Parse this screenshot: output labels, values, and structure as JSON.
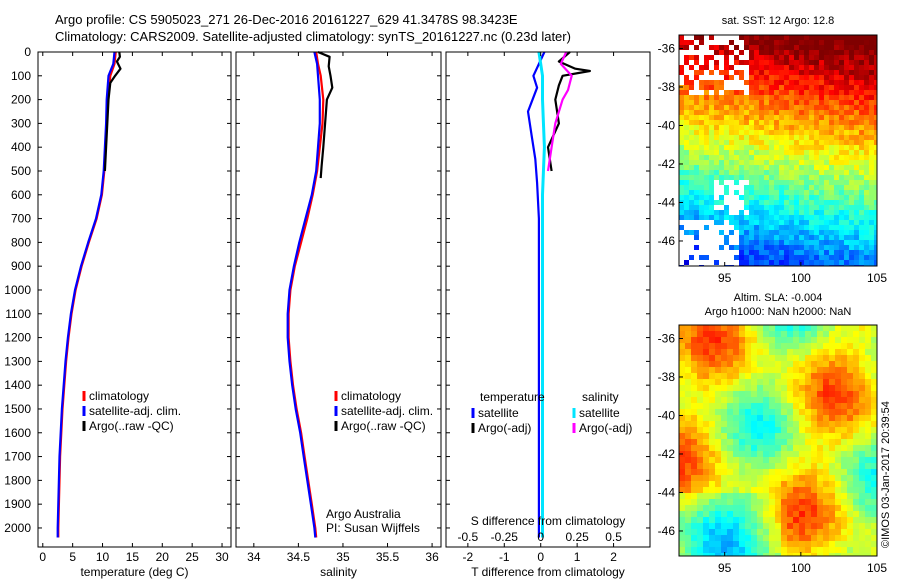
{
  "header": {
    "line1": "Argo profile: CS 5905023_271 26-Dec-2016 20161227_629 41.3478S 98.3423E",
    "line2": "Climatology: CARS2009. Satellite-adjusted climatology: synTS_20161227.nc (0.23d later)"
  },
  "side_text": "©IMOS 03-Jan-2017 20:39:54",
  "colors": {
    "climatology": "#ff0000",
    "satellite_adj": "#0000ff",
    "argo": "#000000",
    "salinity_satellite": "#00e5ff",
    "salinity_argo": "#ff00ff"
  },
  "chart_data": [
    {
      "type": "line",
      "id": "temperature",
      "xlabel": "temperature (deg C)",
      "xlim": [
        -0.8,
        31.5
      ],
      "xticks": [
        0,
        5,
        10,
        15,
        20,
        25,
        30
      ],
      "ylim": [
        2080,
        0
      ],
      "yticks": [
        0,
        100,
        200,
        300,
        400,
        500,
        600,
        700,
        800,
        900,
        1000,
        1100,
        1200,
        1300,
        1400,
        1500,
        1600,
        1700,
        1800,
        1900,
        2000
      ],
      "legend": [
        "climatology",
        "satellite-adj. clim.",
        "Argo(..raw -QC)"
      ],
      "series": [
        {
          "name": "climatology",
          "color": "#ff0000",
          "points": [
            [
              12.2,
              0
            ],
            [
              12.0,
              50
            ],
            [
              11.3,
              100
            ],
            [
              10.9,
              200
            ],
            [
              10.7,
              300
            ],
            [
              10.5,
              400
            ],
            [
              10.3,
              500
            ],
            [
              9.9,
              600
            ],
            [
              9.0,
              700
            ],
            [
              7.7,
              800
            ],
            [
              6.5,
              900
            ],
            [
              5.5,
              1000
            ],
            [
              4.8,
              1100
            ],
            [
              4.3,
              1200
            ],
            [
              3.9,
              1300
            ],
            [
              3.6,
              1400
            ],
            [
              3.3,
              1500
            ],
            [
              3.1,
              1600
            ],
            [
              2.9,
              1700
            ],
            [
              2.8,
              1800
            ],
            [
              2.7,
              1900
            ],
            [
              2.6,
              2000
            ],
            [
              2.6,
              2040
            ]
          ]
        },
        {
          "name": "satellite-adj. clim.",
          "color": "#0000ff",
          "points": [
            [
              12.0,
              0
            ],
            [
              11.8,
              50
            ],
            [
              11.0,
              100
            ],
            [
              10.7,
              200
            ],
            [
              10.6,
              300
            ],
            [
              10.4,
              400
            ],
            [
              10.2,
              500
            ],
            [
              9.8,
              600
            ],
            [
              8.9,
              700
            ],
            [
              7.6,
              800
            ],
            [
              6.4,
              900
            ],
            [
              5.4,
              1000
            ],
            [
              4.7,
              1100
            ],
            [
              4.2,
              1200
            ],
            [
              3.8,
              1300
            ],
            [
              3.5,
              1400
            ],
            [
              3.2,
              1500
            ],
            [
              3.0,
              1600
            ],
            [
              2.8,
              1700
            ],
            [
              2.7,
              1800
            ],
            [
              2.6,
              1900
            ],
            [
              2.5,
              2000
            ],
            [
              2.5,
              2040
            ]
          ]
        },
        {
          "name": "Argo(..raw -QC)",
          "color": "#000000",
          "points": [
            [
              12.8,
              0
            ],
            [
              12.9,
              20
            ],
            [
              12.4,
              40
            ],
            [
              13.0,
              70
            ],
            [
              12.1,
              100
            ],
            [
              11.3,
              130
            ],
            [
              11.0,
              200
            ],
            [
              10.8,
              300
            ],
            [
              10.6,
              400
            ],
            [
              10.5,
              450
            ],
            [
              10.4,
              500
            ]
          ]
        }
      ]
    },
    {
      "type": "line",
      "id": "salinity",
      "xlabel": "salinity",
      "xlim": [
        33.8,
        36.1
      ],
      "xticks": [
        34,
        34.5,
        35,
        35.5,
        36
      ],
      "ylim": [
        2080,
        0
      ],
      "legend": [
        "climatology",
        "satellite-adj. clim.",
        "Argo(..raw -QC)"
      ],
      "annotation": [
        "Argo Australia",
        "PI: Susan Wijffels"
      ],
      "series": [
        {
          "name": "climatology",
          "color": "#ff0000",
          "points": [
            [
              34.7,
              0
            ],
            [
              34.72,
              50
            ],
            [
              34.75,
              100
            ],
            [
              34.78,
              200
            ],
            [
              34.77,
              300
            ],
            [
              34.74,
              400
            ],
            [
              34.71,
              500
            ],
            [
              34.66,
              600
            ],
            [
              34.6,
              700
            ],
            [
              34.53,
              800
            ],
            [
              34.46,
              900
            ],
            [
              34.41,
              1000
            ],
            [
              34.39,
              1100
            ],
            [
              34.39,
              1200
            ],
            [
              34.41,
              1300
            ],
            [
              34.44,
              1400
            ],
            [
              34.48,
              1500
            ],
            [
              34.53,
              1600
            ],
            [
              34.57,
              1700
            ],
            [
              34.61,
              1800
            ],
            [
              34.65,
              1900
            ],
            [
              34.69,
              2000
            ],
            [
              34.7,
              2040
            ]
          ]
        },
        {
          "name": "satellite-adj. clim.",
          "color": "#0000ff",
          "points": [
            [
              34.68,
              0
            ],
            [
              34.71,
              50
            ],
            [
              34.72,
              100
            ],
            [
              34.74,
              200
            ],
            [
              34.74,
              300
            ],
            [
              34.72,
              400
            ],
            [
              34.7,
              500
            ],
            [
              34.65,
              600
            ],
            [
              34.58,
              700
            ],
            [
              34.51,
              800
            ],
            [
              34.45,
              900
            ],
            [
              34.4,
              1000
            ],
            [
              34.38,
              1100
            ],
            [
              34.38,
              1200
            ],
            [
              34.4,
              1300
            ],
            [
              34.43,
              1400
            ],
            [
              34.47,
              1500
            ],
            [
              34.52,
              1600
            ],
            [
              34.56,
              1700
            ],
            [
              34.6,
              1800
            ],
            [
              34.64,
              1900
            ],
            [
              34.68,
              2000
            ],
            [
              34.69,
              2040
            ]
          ]
        },
        {
          "name": "Argo(..raw -QC)",
          "color": "#000000",
          "points": [
            [
              34.72,
              0
            ],
            [
              34.85,
              20
            ],
            [
              34.84,
              60
            ],
            [
              34.86,
              100
            ],
            [
              34.88,
              150
            ],
            [
              34.82,
              200
            ],
            [
              34.8,
              300
            ],
            [
              34.78,
              400
            ],
            [
              34.76,
              480
            ],
            [
              34.75,
              530
            ]
          ]
        }
      ]
    },
    {
      "type": "line",
      "id": "difference",
      "xlabel": "T difference from climatology",
      "xlabel_top": "S difference from climatology",
      "xlim": [
        -2.6,
        3.0
      ],
      "xticks": [
        -2,
        -1,
        0,
        1,
        2
      ],
      "s_tick_labels": [
        "-0.5",
        "-0.25",
        "0",
        "0.25",
        "0.5"
      ],
      "s_xticks": [
        -2,
        -1,
        0,
        1,
        2
      ],
      "ylim": [
        2080,
        0
      ],
      "legend_headers": [
        "temperature",
        "salinity"
      ],
      "legend": [
        "satellite",
        "Argo(-adj)",
        "satellite",
        "Argo(-adj)"
      ],
      "series": [
        {
          "name": "satellite",
          "color": "#0000ff",
          "points": [
            [
              0.1,
              0
            ],
            [
              -0.05,
              50
            ],
            [
              -0.2,
              100
            ],
            [
              -0.1,
              150
            ],
            [
              -0.35,
              250
            ],
            [
              -0.25,
              350
            ],
            [
              -0.15,
              450
            ],
            [
              -0.1,
              550
            ],
            [
              -0.05,
              700
            ],
            [
              -0.05,
              900
            ],
            [
              -0.05,
              1200
            ],
            [
              -0.05,
              1500
            ],
            [
              -0.05,
              1800
            ],
            [
              -0.05,
              2040
            ]
          ]
        },
        {
          "name": "Argo(-adj)",
          "color": "#000000",
          "points": [
            [
              0.8,
              0
            ],
            [
              0.5,
              40
            ],
            [
              0.95,
              70
            ],
            [
              1.35,
              80
            ],
            [
              0.6,
              100
            ],
            [
              0.5,
              140
            ],
            [
              0.4,
              200
            ],
            [
              0.5,
              300
            ],
            [
              0.2,
              400
            ],
            [
              0.3,
              500
            ]
          ]
        },
        {
          "name": "satellite",
          "color": "#00e5ff",
          "points": [
            [
              -0.05,
              0
            ],
            [
              0.0,
              50
            ],
            [
              0.05,
              100
            ],
            [
              0.05,
              200
            ],
            [
              0.1,
              400
            ],
            [
              0.05,
              600
            ],
            [
              0.05,
              800
            ],
            [
              0.05,
              1000
            ],
            [
              0.05,
              1200
            ],
            [
              0.05,
              1500
            ],
            [
              0.05,
              1800
            ],
            [
              0.05,
              2040
            ]
          ]
        },
        {
          "name": "Argo(-adj)",
          "color": "#ff00ff",
          "points": [
            [
              0.7,
              0
            ],
            [
              0.55,
              50
            ],
            [
              0.85,
              100
            ],
            [
              0.75,
              160
            ],
            [
              0.6,
              200
            ],
            [
              0.4,
              300
            ],
            [
              0.3,
              400
            ],
            [
              0.2,
              500
            ]
          ]
        }
      ]
    }
  ],
  "maps": [
    {
      "id": "sst-map",
      "title": "sat. SST: 12 Argo: 12.8",
      "xticks": [
        95,
        100,
        105
      ],
      "yticks": [
        -36,
        -38,
        -40,
        -42,
        -44,
        -46
      ],
      "xlim": [
        92,
        105
      ],
      "ylim": [
        -47.3,
        -35.3
      ]
    },
    {
      "id": "sla-map",
      "title_line1": "Altim. SLA: -0.004",
      "title_line2": "Argo h1000: NaN h2000: NaN",
      "xticks": [
        95,
        100,
        105
      ],
      "yticks": [
        -36,
        -38,
        -40,
        -42,
        -44,
        -46
      ],
      "xlim": [
        92,
        105
      ],
      "ylim": [
        -47.3,
        -35.3
      ]
    }
  ]
}
